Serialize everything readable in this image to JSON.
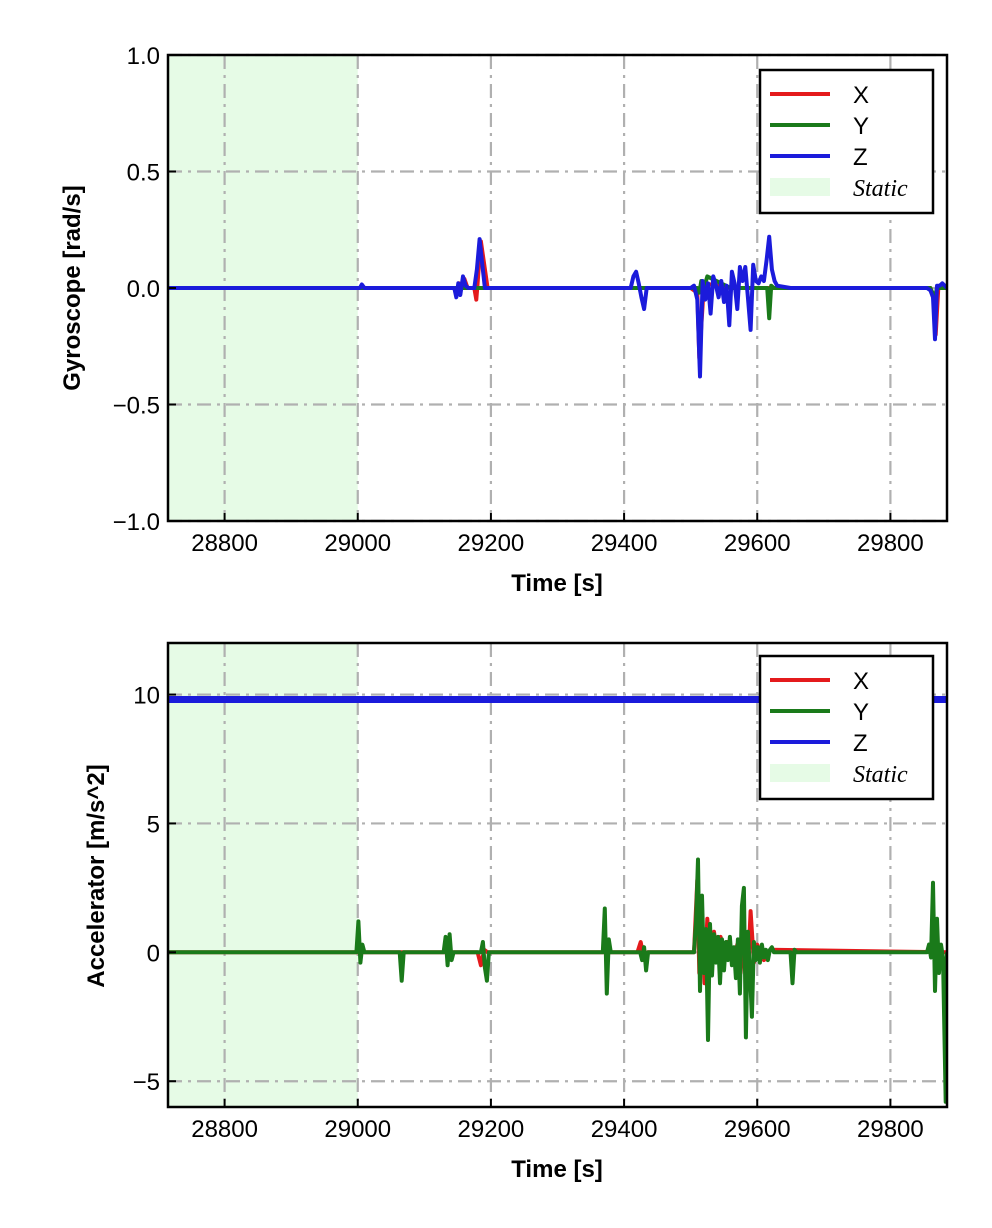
{
  "chart_data": [
    {
      "type": "line",
      "ylabel": "Gyroscope [rad/s]",
      "xlabel": "Time [s]",
      "xlim": [
        28715,
        29885
      ],
      "ylim": [
        -1.0,
        1.0
      ],
      "xticks": [
        28800,
        29000,
        29200,
        29400,
        29600,
        29800
      ],
      "xtick_labels": [
        "28800",
        "29000",
        "29200",
        "29400",
        "29600",
        "29800"
      ],
      "yticks": [
        -1.0,
        -0.5,
        0.0,
        0.5,
        1.0
      ],
      "ytick_labels": [
        "−1.0",
        "−0.5",
        "0.0",
        "0.5",
        "1.0"
      ],
      "grid": true,
      "legend_position": "top-right",
      "shaded_region": {
        "label": "Static",
        "x_start": 28715,
        "x_end": 29000,
        "color": "#e6fbe6"
      },
      "series": [
        {
          "name": "X",
          "color": "#e41a1c",
          "x": [
            28715,
            29145,
            29148,
            29152,
            29155,
            29160,
            29165,
            29175,
            29178,
            29180,
            29182,
            29185,
            29195,
            29500,
            29510,
            29513,
            29520,
            29560,
            29600,
            29610,
            29860,
            29865,
            29868,
            29872,
            29885
          ],
          "y": [
            0,
            0,
            -0.03,
            0.02,
            0,
            0.04,
            0,
            0,
            -0.05,
            0.02,
            0.1,
            0.2,
            0,
            0,
            -0.02,
            -0.3,
            0.02,
            0,
            0,
            0,
            0,
            -0.05,
            -0.2,
            0,
            0
          ]
        },
        {
          "name": "Y",
          "color": "#1a7a1a",
          "x": [
            28715,
            29470,
            29510,
            29513,
            29516,
            29520,
            29525,
            29560,
            29600,
            29615,
            29618,
            29621,
            29625,
            29860,
            29863,
            29866,
            29870,
            29885
          ],
          "y": [
            0,
            0,
            0,
            -0.02,
            0.03,
            0,
            0.05,
            0,
            0,
            0,
            -0.13,
            0.01,
            0,
            0,
            -0.02,
            -0.05,
            0,
            0
          ]
        },
        {
          "name": "Z",
          "color": "#1b1bdb",
          "x": [
            28715,
            29003,
            29006,
            29010,
            29145,
            29148,
            29151,
            29154,
            29158,
            29162,
            29166,
            29175,
            29179,
            29183,
            29187,
            29191,
            29195,
            29410,
            29414,
            29418,
            29422,
            29426,
            29430,
            29434,
            29500,
            29505,
            29510,
            29514,
            29518,
            29522,
            29526,
            29530,
            29534,
            29538,
            29542,
            29546,
            29550,
            29554,
            29558,
            29562,
            29566,
            29570,
            29574,
            29578,
            29582,
            29586,
            29590,
            29594,
            29598,
            29602,
            29606,
            29610,
            29614,
            29618,
            29622,
            29626,
            29630,
            29650,
            29855,
            29860,
            29864,
            29867,
            29870,
            29874,
            29878,
            29885
          ],
          "y": [
            0,
            0,
            0.015,
            0,
            0,
            -0.04,
            0.02,
            -0.03,
            0.05,
            0.01,
            0,
            0,
            0.08,
            0.21,
            0.1,
            0,
            0,
            0,
            0.05,
            0.07,
            0.02,
            -0.04,
            -0.09,
            0,
            0,
            0.01,
            -0.05,
            -0.38,
            0.03,
            -0.05,
            0.02,
            -0.11,
            0.05,
            0.01,
            -0.04,
            0.03,
            -0.06,
            0.01,
            -0.16,
            0.07,
            0.02,
            -0.09,
            0.09,
            0.03,
            0.09,
            -0.04,
            -0.18,
            0.1,
            0.03,
            0.02,
            0.05,
            0.03,
            0.12,
            0.22,
            0.08,
            0.03,
            0.01,
            0,
            0,
            -0.01,
            -0.04,
            -0.22,
            0.01,
            0.01,
            0.02,
            0
          ]
        }
      ]
    },
    {
      "type": "line",
      "ylabel": "Accelerator [m/s^2]",
      "xlabel": "Time [s]",
      "xlim": [
        28715,
        29885
      ],
      "ylim": [
        -6,
        12
      ],
      "xticks": [
        28800,
        29000,
        29200,
        29400,
        29600,
        29800
      ],
      "xtick_labels": [
        "28800",
        "29000",
        "29200",
        "29400",
        "29600",
        "29800"
      ],
      "yticks": [
        -5,
        0,
        5,
        10
      ],
      "ytick_labels": [
        "−5",
        "0",
        "5",
        "10"
      ],
      "grid": true,
      "legend_position": "top-right",
      "shaded_region": {
        "label": "Static",
        "x_start": 28715,
        "x_end": 29000,
        "color": "#e6fbe6"
      },
      "series": [
        {
          "name": "X",
          "color": "#e41a1c",
          "x": [
            28715,
            29180,
            29185,
            29190,
            29195,
            29420,
            29425,
            29430,
            29435,
            29505,
            29510,
            29513,
            29517,
            29521,
            29525,
            29530,
            29535,
            29540,
            29545,
            29550,
            29555,
            29560,
            29565,
            29570,
            29575,
            29580,
            29585,
            29590,
            29595,
            29600,
            29610,
            29620,
            29885
          ],
          "y": [
            0,
            0,
            -0.5,
            0.1,
            0,
            0,
            0.4,
            -0.3,
            0,
            0,
            2.8,
            -0.8,
            1.2,
            -1.2,
            1.3,
            -0.6,
            0.8,
            -0.2,
            0.6,
            -0.2,
            0.4,
            0.1,
            -0.2,
            0.3,
            -0.8,
            1.0,
            -1.3,
            1.6,
            -0.4,
            0.3,
            -0.3,
            0.1,
            0
          ]
        },
        {
          "name": "Y",
          "color": "#1a7a1a",
          "x": [
            28715,
            28998,
            29001,
            29004,
            29007,
            29010,
            29063,
            29066,
            29069,
            29129,
            29132,
            29135,
            29138,
            29141,
            29144,
            29185,
            29188,
            29191,
            29194,
            29197,
            29368,
            29371,
            29374,
            29377,
            29380,
            29424,
            29427,
            29430,
            29433,
            29436,
            29505,
            29508,
            29511,
            29514,
            29517,
            29520,
            29523,
            29526,
            29529,
            29532,
            29535,
            29538,
            29541,
            29544,
            29547,
            29550,
            29553,
            29556,
            29559,
            29562,
            29565,
            29568,
            29571,
            29574,
            29577,
            29580,
            29583,
            29586,
            29589,
            29592,
            29595,
            29598,
            29601,
            29604,
            29607,
            29610,
            29613,
            29616,
            29619,
            29622,
            29625,
            29650,
            29653,
            29656,
            29659,
            29855,
            29858,
            29861,
            29864,
            29867,
            29870,
            29873,
            29876,
            29879,
            29883,
            29885
          ],
          "y": [
            0,
            0,
            1.2,
            -0.4,
            0.3,
            0,
            0,
            -1.1,
            0,
            0,
            0.6,
            -0.5,
            0.7,
            -0.3,
            0,
            0,
            0.4,
            -0.6,
            -1.1,
            0,
            0,
            1.7,
            -1.6,
            0.5,
            0,
            0,
            -0.3,
            0.2,
            -0.7,
            0,
            0,
            1.2,
            3.6,
            -1.5,
            2.2,
            -0.8,
            0.9,
            -3.4,
            1.1,
            -0.9,
            0.7,
            -0.4,
            0.6,
            -1.2,
            0.5,
            -0.7,
            0.4,
            -0.3,
            0.6,
            -0.5,
            0.2,
            -1.0,
            0.5,
            -1.6,
            1.8,
            2.5,
            -3.3,
            0.8,
            -0.7,
            -2.5,
            0.4,
            -0.3,
            0.2,
            -0.4,
            0.3,
            -0.2,
            0.1,
            -0.3,
            0.1,
            0.2,
            0,
            0,
            -1.2,
            0.1,
            0,
            0,
            0.3,
            -0.2,
            2.7,
            -1.5,
            1.3,
            -0.8,
            0.3,
            -0.2,
            -5.8,
            0
          ]
        },
        {
          "name": "Z",
          "color": "#1b1bdb",
          "x": [
            28715,
            29885
          ],
          "y": [
            9.81,
            9.81
          ]
        }
      ]
    }
  ]
}
